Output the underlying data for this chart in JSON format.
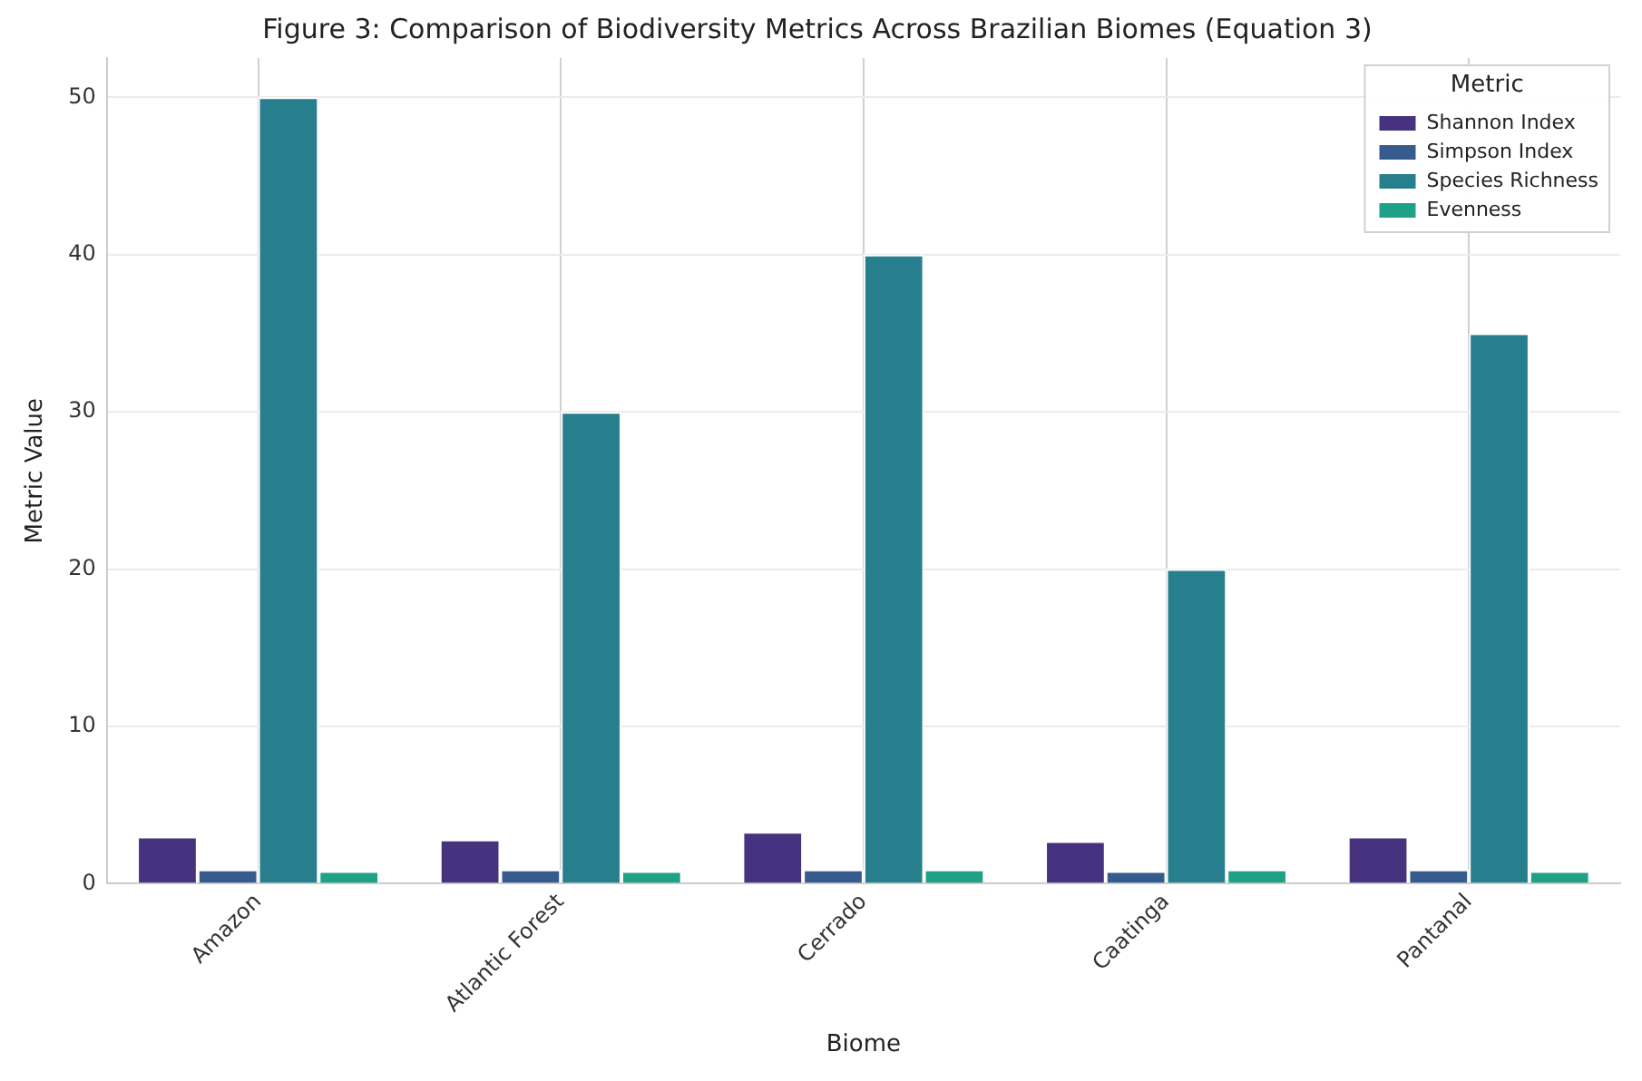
{
  "chart_data": {
    "type": "bar",
    "title": "Figure 3: Comparison of Biodiversity Metrics Across Brazilian Biomes (Equation 3)",
    "xlabel": "Biome",
    "ylabel": "Metric Value",
    "legend_title": "Metric",
    "categories": [
      "Amazon",
      "Atlantic Forest",
      "Cerrado",
      "Caatinga",
      "Pantanal"
    ],
    "series": [
      {
        "name": "Shannon Index",
        "color": "#46327e",
        "values": [
          3.0,
          2.8,
          3.3,
          2.7,
          3.0
        ]
      },
      {
        "name": "Simpson Index",
        "color": "#365c8d",
        "values": [
          0.9,
          0.9,
          0.9,
          0.8,
          0.9
        ]
      },
      {
        "name": "Species Richness",
        "color": "#277f8e",
        "values": [
          50,
          30,
          40,
          20,
          35
        ]
      },
      {
        "name": "Evenness",
        "color": "#1fa187",
        "values": [
          0.8,
          0.8,
          0.9,
          0.9,
          0.8
        ]
      }
    ],
    "ylim": [
      0,
      52.5
    ],
    "yticks": [
      0,
      10,
      20,
      30,
      40,
      50
    ],
    "grid": true,
    "legend": "top right"
  }
}
